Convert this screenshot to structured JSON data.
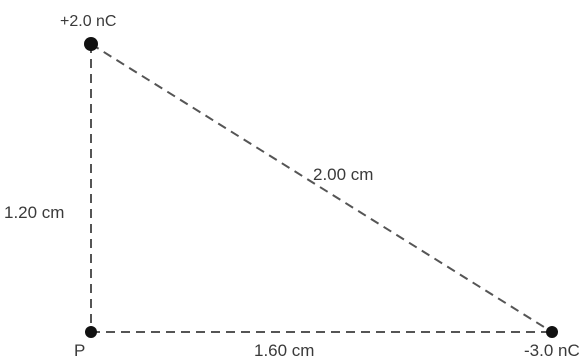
{
  "charges": {
    "top": {
      "label": "+2.0 nC"
    },
    "corner": {
      "label": "P"
    },
    "right": {
      "label": "-3.0 nC"
    }
  },
  "distances": {
    "vertical": "1.20 cm",
    "horizontal": "1.60 cm",
    "hypotenuse": "2.00 cm"
  },
  "colors": {
    "line": "#555555",
    "dot": "#111111",
    "text": "#3a3a3a"
  }
}
